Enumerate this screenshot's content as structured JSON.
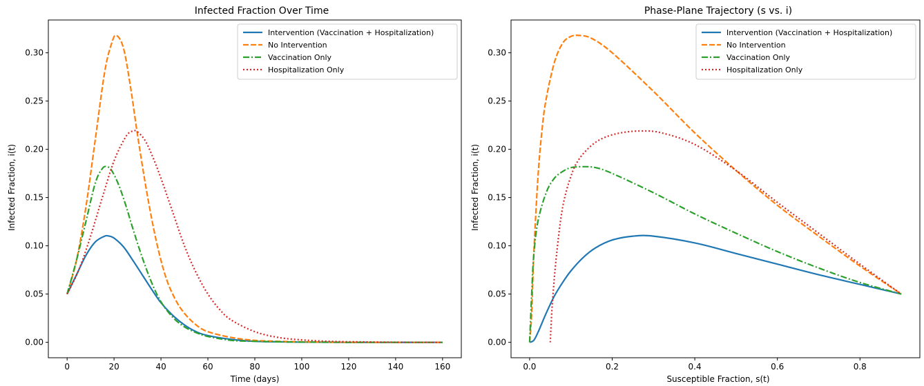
{
  "chart_data": [
    {
      "type": "line",
      "title": "Infected Fraction Over Time",
      "xlabel": "Time (days)",
      "ylabel": "Infected Fraction, i(t)",
      "xlim": [
        -8,
        168
      ],
      "ylim": [
        -0.016,
        0.334
      ],
      "xticks": [
        0,
        20,
        40,
        60,
        80,
        100,
        120,
        140,
        160
      ],
      "xtick_labels": [
        "0",
        "20",
        "40",
        "60",
        "80",
        "100",
        "120",
        "140",
        "160"
      ],
      "yticks": [
        0.0,
        0.05,
        0.1,
        0.15,
        0.2,
        0.25,
        0.3
      ],
      "ytick_labels": [
        "0.00",
        "0.05",
        "0.10",
        "0.15",
        "0.20",
        "0.25",
        "0.30"
      ],
      "grid": false,
      "legend_position": "top-right",
      "series": [
        {
          "name": "Intervention (Vaccination + Hospitalization)",
          "color": "#1f77b4",
          "style": "solid",
          "x": [
            0,
            4,
            8,
            12,
            16,
            18,
            20,
            24,
            28,
            32,
            36,
            40,
            45,
            50,
            55,
            60,
            70,
            80,
            90,
            100,
            120,
            140,
            160
          ],
          "y": [
            0.05,
            0.07,
            0.09,
            0.104,
            0.11,
            0.11,
            0.108,
            0.099,
            0.085,
            0.07,
            0.055,
            0.041,
            0.028,
            0.018,
            0.011,
            0.007,
            0.003,
            0.001,
            0.0005,
            0.0002,
            0.0,
            0.0,
            0.0
          ]
        },
        {
          "name": "No Intervention",
          "color": "#ff7f0e",
          "style": "dashed",
          "x": [
            0,
            4,
            8,
            12,
            16,
            19,
            21,
            24,
            27,
            30,
            34,
            38,
            42,
            46,
            50,
            55,
            60,
            70,
            80,
            90,
            100,
            120,
            140,
            160
          ],
          "y": [
            0.05,
            0.085,
            0.14,
            0.21,
            0.28,
            0.31,
            0.318,
            0.305,
            0.265,
            0.215,
            0.155,
            0.105,
            0.068,
            0.045,
            0.03,
            0.018,
            0.011,
            0.005,
            0.002,
            0.001,
            0.0005,
            0.0,
            0.0,
            0.0
          ]
        },
        {
          "name": "Vaccination Only",
          "color": "#2ca02c",
          "style": "dashdot",
          "x": [
            0,
            4,
            8,
            12,
            15,
            17,
            19,
            22,
            25,
            28,
            32,
            36,
            40,
            45,
            50,
            55,
            60,
            70,
            80,
            90,
            100,
            120,
            140,
            160
          ],
          "y": [
            0.05,
            0.085,
            0.125,
            0.165,
            0.18,
            0.182,
            0.178,
            0.163,
            0.142,
            0.118,
            0.088,
            0.062,
            0.042,
            0.026,
            0.016,
            0.01,
            0.006,
            0.002,
            0.001,
            0.0005,
            0.0002,
            0.0,
            0.0,
            0.0
          ]
        },
        {
          "name": "Hospitalization Only",
          "color": "#d62728",
          "style": "dotted",
          "x": [
            0,
            5,
            10,
            15,
            20,
            25,
            28,
            30,
            33,
            36,
            40,
            45,
            50,
            55,
            60,
            65,
            70,
            80,
            90,
            100,
            110,
            120,
            140,
            160
          ],
          "y": [
            0.05,
            0.075,
            0.11,
            0.15,
            0.188,
            0.213,
            0.219,
            0.218,
            0.21,
            0.195,
            0.17,
            0.135,
            0.1,
            0.072,
            0.05,
            0.034,
            0.023,
            0.011,
            0.005,
            0.0025,
            0.0012,
            0.0006,
            0.0001,
            0.0
          ]
        }
      ]
    },
    {
      "type": "line",
      "title": "Phase-Plane Trajectory (s vs. i)",
      "xlabel": "Susceptible Fraction, s(t)",
      "ylabel": "Infected Fraction, i(t)",
      "xlim": [
        -0.045,
        0.945
      ],
      "ylim": [
        -0.016,
        0.334
      ],
      "xticks": [
        0.0,
        0.2,
        0.4,
        0.6,
        0.8
      ],
      "xtick_labels": [
        "0.0",
        "0.2",
        "0.4",
        "0.6",
        "0.8"
      ],
      "yticks": [
        0.0,
        0.05,
        0.1,
        0.15,
        0.2,
        0.25,
        0.3
      ],
      "ytick_labels": [
        "0.00",
        "0.05",
        "0.10",
        "0.15",
        "0.20",
        "0.25",
        "0.30"
      ],
      "grid": false,
      "legend_position": "top-right",
      "series": [
        {
          "name": "Intervention (Vaccination + Hospitalization)",
          "color": "#1f77b4",
          "style": "solid",
          "x": [
            0.0,
            0.01,
            0.02,
            0.04,
            0.06,
            0.08,
            0.1,
            0.13,
            0.16,
            0.2,
            0.25,
            0.3,
            0.4,
            0.5,
            0.6,
            0.7,
            0.8,
            0.9
          ],
          "y": [
            0.0,
            0.002,
            0.01,
            0.03,
            0.048,
            0.062,
            0.074,
            0.088,
            0.098,
            0.106,
            0.11,
            0.11,
            0.103,
            0.092,
            0.081,
            0.07,
            0.06,
            0.05
          ]
        },
        {
          "name": "No Intervention",
          "color": "#ff7f0e",
          "style": "dashed",
          "x": [
            0.0,
            0.005,
            0.01,
            0.02,
            0.03,
            0.04,
            0.06,
            0.08,
            0.1,
            0.12,
            0.15,
            0.2,
            0.3,
            0.4,
            0.5,
            0.6,
            0.7,
            0.8,
            0.9
          ],
          "y": [
            0.0,
            0.03,
            0.09,
            0.17,
            0.22,
            0.252,
            0.29,
            0.31,
            0.317,
            0.318,
            0.315,
            0.3,
            0.26,
            0.217,
            0.178,
            0.142,
            0.11,
            0.079,
            0.05
          ]
        },
        {
          "name": "Vaccination Only",
          "color": "#2ca02c",
          "style": "dashdot",
          "x": [
            0.0,
            0.005,
            0.01,
            0.02,
            0.04,
            0.06,
            0.08,
            0.1,
            0.13,
            0.16,
            0.2,
            0.3,
            0.4,
            0.5,
            0.6,
            0.7,
            0.8,
            0.9
          ],
          "y": [
            0.0,
            0.05,
            0.09,
            0.125,
            0.155,
            0.17,
            0.177,
            0.181,
            0.182,
            0.181,
            0.175,
            0.155,
            0.133,
            0.113,
            0.094,
            0.077,
            0.062,
            0.05
          ]
        },
        {
          "name": "Hospitalization Only",
          "color": "#d62728",
          "style": "dotted",
          "x": [
            0.05,
            0.055,
            0.065,
            0.08,
            0.1,
            0.12,
            0.15,
            0.18,
            0.22,
            0.27,
            0.32,
            0.4,
            0.5,
            0.6,
            0.7,
            0.8,
            0.9
          ],
          "y": [
            0.0,
            0.04,
            0.09,
            0.14,
            0.172,
            0.19,
            0.204,
            0.212,
            0.217,
            0.219,
            0.217,
            0.205,
            0.178,
            0.145,
            0.113,
            0.081,
            0.05
          ]
        }
      ]
    }
  ]
}
